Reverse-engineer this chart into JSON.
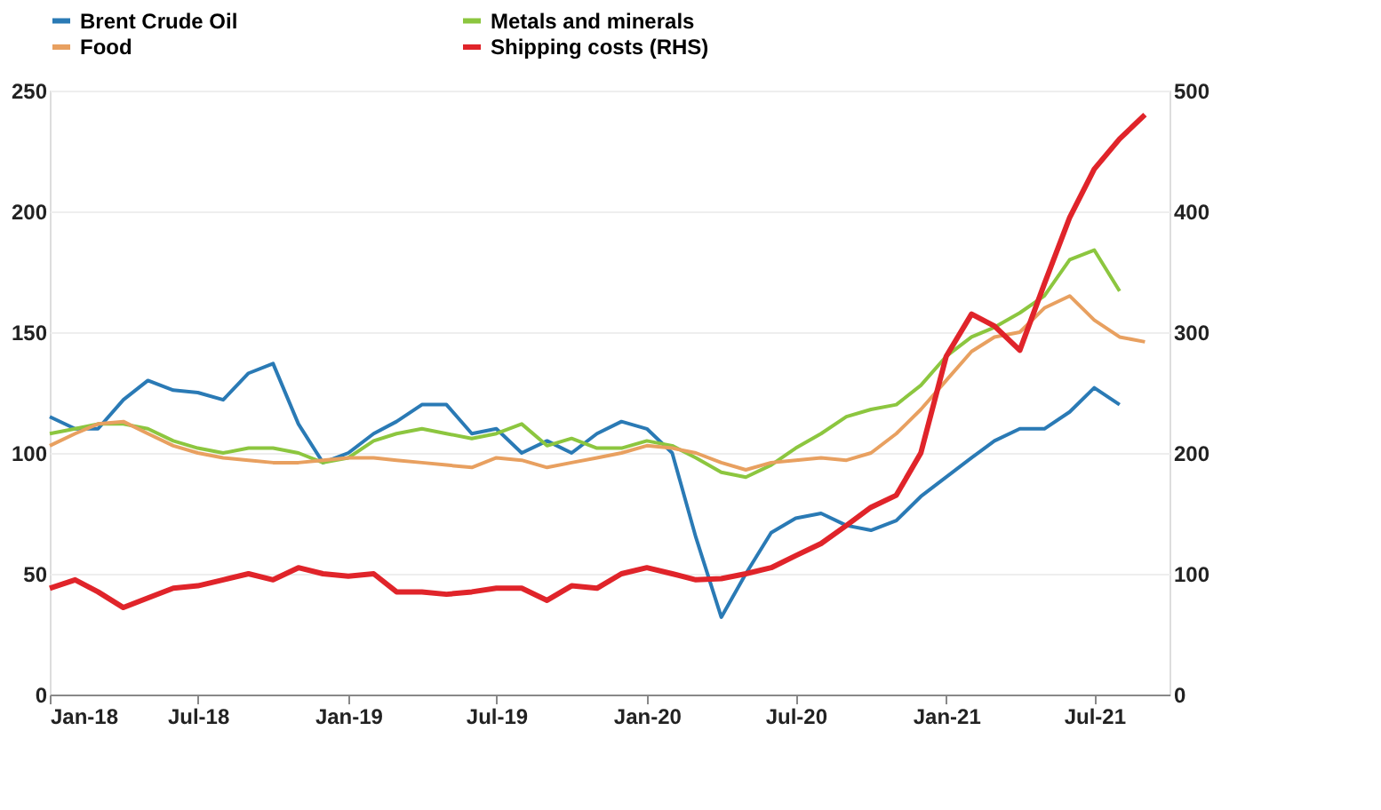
{
  "chart_data": {
    "type": "line",
    "x": [
      "2018-01",
      "2018-02",
      "2018-03",
      "2018-04",
      "2018-05",
      "2018-06",
      "2018-07",
      "2018-08",
      "2018-09",
      "2018-10",
      "2018-11",
      "2018-12",
      "2019-01",
      "2019-02",
      "2019-03",
      "2019-04",
      "2019-05",
      "2019-06",
      "2019-07",
      "2019-08",
      "2019-09",
      "2019-10",
      "2019-11",
      "2019-12",
      "2020-01",
      "2020-02",
      "2020-03",
      "2020-04",
      "2020-05",
      "2020-06",
      "2020-07",
      "2020-08",
      "2020-09",
      "2020-10",
      "2020-11",
      "2020-12",
      "2021-01",
      "2021-02",
      "2021-03",
      "2021-04",
      "2021-05",
      "2021-06",
      "2021-07",
      "2021-08",
      "2021-09"
    ],
    "series": [
      {
        "name": "Brent Crude Oil",
        "color": "#2a7ab5",
        "values": [
          115,
          110,
          110,
          122,
          130,
          126,
          125,
          122,
          133,
          137,
          112,
          96,
          100,
          108,
          113,
          120,
          120,
          108,
          110,
          100,
          105,
          100,
          108,
          113,
          110,
          100,
          65,
          32,
          50,
          67,
          73,
          75,
          70,
          68,
          72,
          82,
          90,
          98,
          105,
          110,
          110,
          117,
          127,
          120,
          null
        ]
      },
      {
        "name": "Metals and minerals",
        "color": "#8cc63f",
        "values": [
          108,
          110,
          112,
          112,
          110,
          105,
          102,
          100,
          102,
          102,
          100,
          96,
          98,
          105,
          108,
          110,
          108,
          106,
          108,
          112,
          103,
          106,
          102,
          102,
          105,
          103,
          98,
          92,
          90,
          95,
          102,
          108,
          115,
          118,
          120,
          128,
          140,
          148,
          152,
          158,
          165,
          180,
          184,
          167,
          null
        ]
      },
      {
        "name": "Food",
        "color": "#e8a060",
        "values": [
          103,
          108,
          112,
          113,
          108,
          103,
          100,
          98,
          97,
          96,
          96,
          97,
          98,
          98,
          97,
          96,
          95,
          94,
          98,
          97,
          94,
          96,
          98,
          100,
          103,
          102,
          100,
          96,
          93,
          96,
          97,
          98,
          97,
          100,
          108,
          118,
          130,
          142,
          148,
          150,
          160,
          165,
          155,
          148,
          146
        ]
      },
      {
        "name": "Shipping costs (RHS)",
        "color": "#e0242a",
        "axis": "y2",
        "values": [
          88,
          95,
          85,
          72,
          80,
          88,
          90,
          95,
          100,
          95,
          105,
          100,
          98,
          100,
          85,
          85,
          83,
          85,
          88,
          88,
          78,
          90,
          88,
          100,
          105,
          100,
          95,
          96,
          100,
          105,
          115,
          125,
          140,
          155,
          165,
          200,
          280,
          315,
          305,
          285,
          340,
          395,
          435,
          460,
          480
        ]
      }
    ],
    "xlim": [
      "2018-01",
      "2021-10"
    ],
    "xticks": [
      {
        "value": "2018-01",
        "label": "Jan-18"
      },
      {
        "value": "2018-07",
        "label": "Jul-18"
      },
      {
        "value": "2019-01",
        "label": "Jan-19"
      },
      {
        "value": "2019-07",
        "label": "Jul-19"
      },
      {
        "value": "2020-01",
        "label": "Jan-20"
      },
      {
        "value": "2020-07",
        "label": "Jul-20"
      },
      {
        "value": "2021-01",
        "label": "Jan-21"
      },
      {
        "value": "2021-07",
        "label": "Jul-21"
      }
    ],
    "ylim": [
      0,
      250
    ],
    "yticks": [
      0,
      50,
      100,
      150,
      200,
      250
    ],
    "y2lim": [
      0,
      500
    ],
    "y2ticks": [
      0,
      100,
      200,
      300,
      400,
      500
    ],
    "grid": "y",
    "legend": "top",
    "marker": "none",
    "line_style": "solid"
  }
}
